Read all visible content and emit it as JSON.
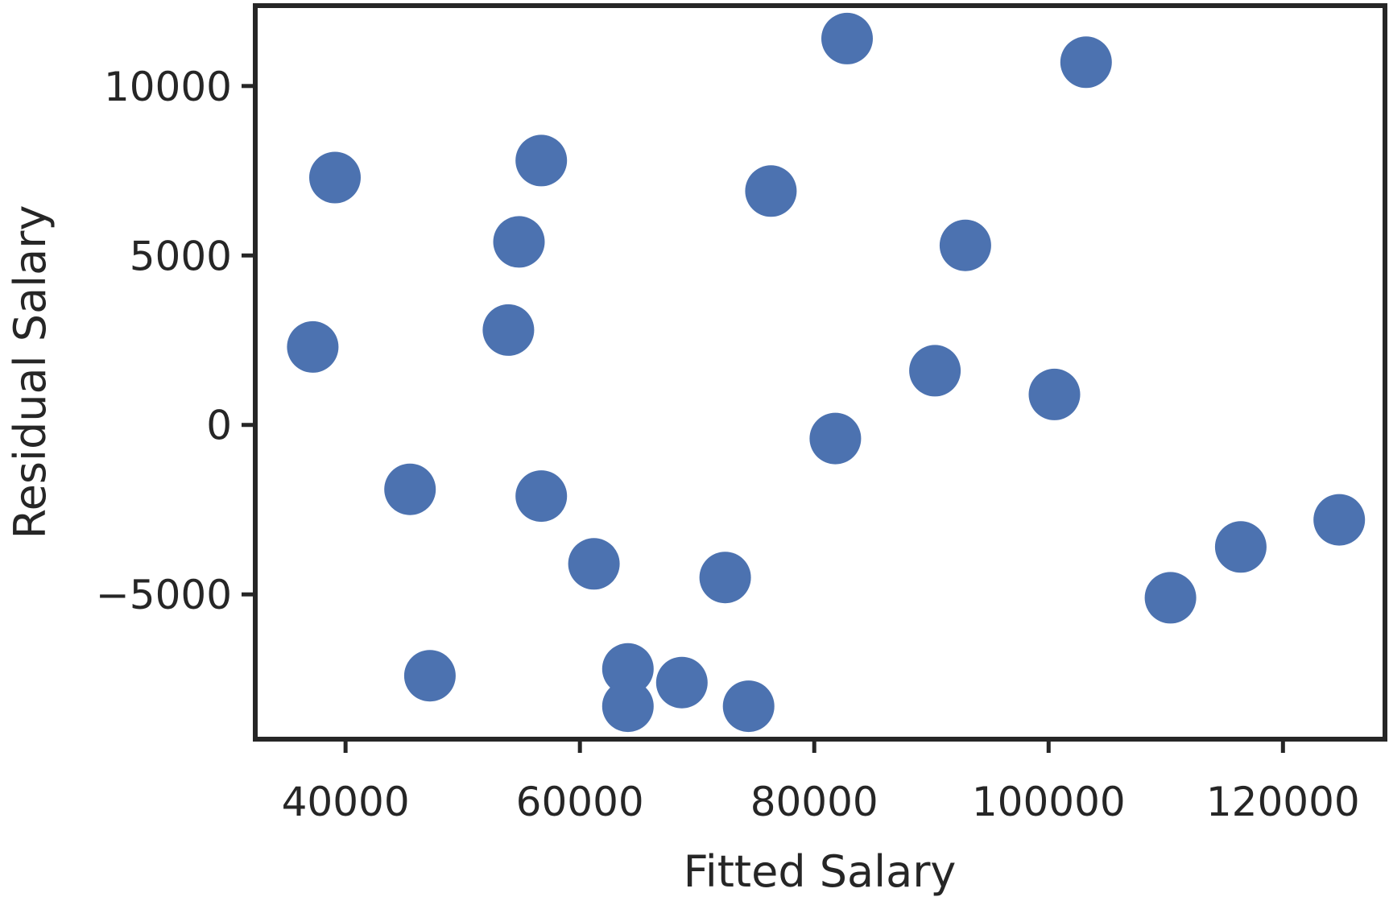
{
  "chart_data": {
    "type": "scatter",
    "title": "",
    "xlabel": "Fitted Salary",
    "ylabel": "Residual Salary",
    "xlim": [
      32500,
      128500
    ],
    "ylim": [
      -9200,
      12300
    ],
    "x_ticks": [
      40000,
      60000,
      80000,
      100000,
      120000
    ],
    "y_ticks": [
      -5000,
      0,
      5000,
      10000
    ],
    "x_tick_labels": [
      "40000",
      "60000",
      "80000",
      "100000",
      "120000"
    ],
    "y_tick_labels": [
      "−5000",
      "0",
      "5000",
      "10000"
    ],
    "grid": false,
    "marker_color": "#4c72b0",
    "points": [
      {
        "x": 37200,
        "y": 2300
      },
      {
        "x": 39100,
        "y": 7300
      },
      {
        "x": 45500,
        "y": -1900
      },
      {
        "x": 47200,
        "y": -7400
      },
      {
        "x": 53900,
        "y": 2800
      },
      {
        "x": 54800,
        "y": 5400
      },
      {
        "x": 56700,
        "y": 7800
      },
      {
        "x": 56700,
        "y": -2100
      },
      {
        "x": 61200,
        "y": -4100
      },
      {
        "x": 64100,
        "y": -7200
      },
      {
        "x": 64100,
        "y": -8300
      },
      {
        "x": 68700,
        "y": -7600
      },
      {
        "x": 72400,
        "y": -4500
      },
      {
        "x": 74400,
        "y": -8300
      },
      {
        "x": 76300,
        "y": 6900
      },
      {
        "x": 81800,
        "y": -400
      },
      {
        "x": 82800,
        "y": 11400
      },
      {
        "x": 90300,
        "y": 1600
      },
      {
        "x": 92900,
        "y": 5300
      },
      {
        "x": 100500,
        "y": 900
      },
      {
        "x": 103200,
        "y": 10700
      },
      {
        "x": 110400,
        "y": -5100
      },
      {
        "x": 116400,
        "y": -3600
      },
      {
        "x": 124800,
        "y": -2800
      }
    ]
  }
}
